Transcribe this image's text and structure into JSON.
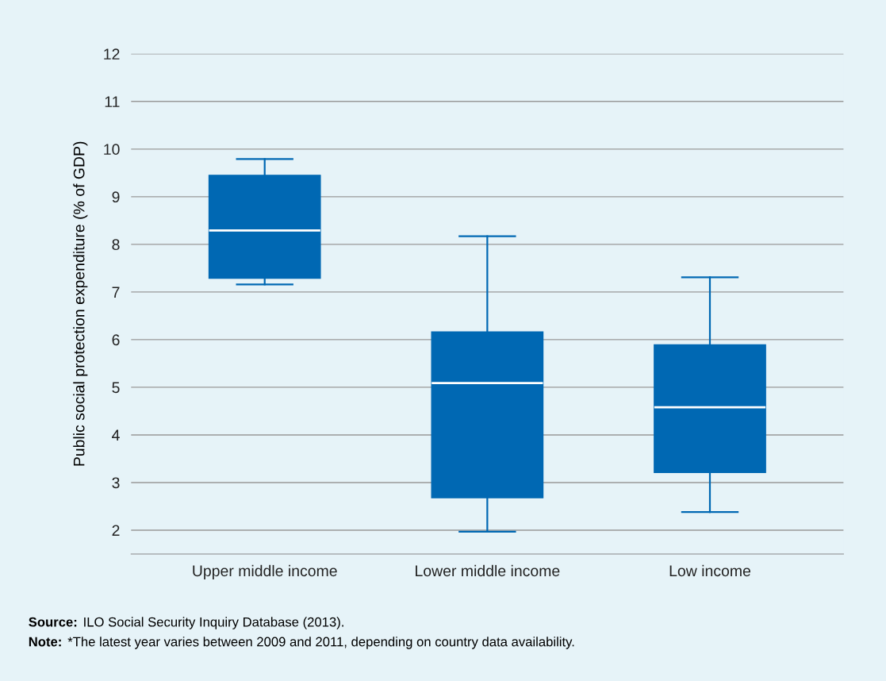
{
  "chart_data": {
    "type": "box",
    "ylabel": "Public social protection expenditure (% of GDP)",
    "categories": [
      "Upper middle income",
      "Lower middle income",
      "Low income"
    ],
    "boxes": [
      {
        "low": 7.16,
        "q1": 7.29,
        "median": 8.29,
        "q3": 9.45,
        "high": 9.79
      },
      {
        "low": 1.97,
        "q1": 2.68,
        "median": 5.09,
        "q3": 6.16,
        "high": 8.17
      },
      {
        "low": 2.38,
        "q1": 3.21,
        "median": 4.58,
        "q3": 5.89,
        "high": 7.31
      }
    ],
    "color": "#0068b3",
    "ylim": [
      1.5,
      12
    ],
    "yticks": [
      2,
      3,
      4,
      5,
      6,
      7,
      8,
      9,
      10,
      11,
      12
    ],
    "grid": "y",
    "legend": false,
    "annotations": [
      "Source: ILO Social Security Inquiry Database (2013).",
      "Note: *The latest year varies between 2009 and 2011, depending on country data availability."
    ]
  }
}
